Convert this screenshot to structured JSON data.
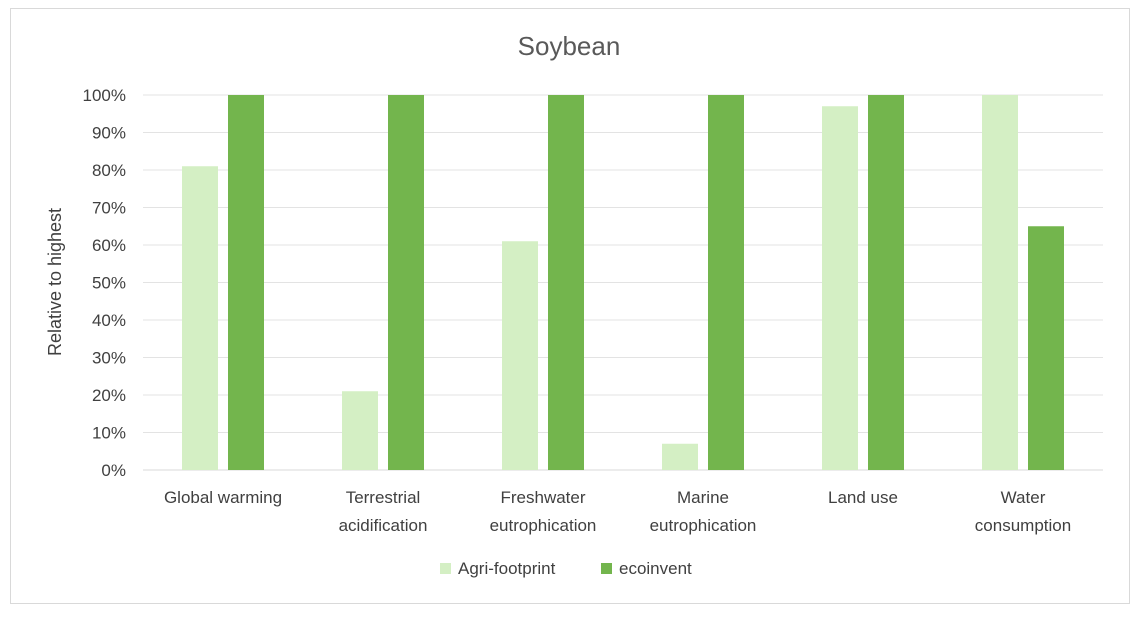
{
  "chart_data": {
    "type": "bar",
    "title": "Soybean",
    "xlabel": "",
    "ylabel": "Relative to highest",
    "categories": [
      [
        "Global warming"
      ],
      [
        "Terrestrial",
        "acidification"
      ],
      [
        "Freshwater",
        "eutrophication"
      ],
      [
        "Marine",
        "eutrophication"
      ],
      [
        "Land use"
      ],
      [
        "Water",
        "consumption"
      ]
    ],
    "series": [
      {
        "name": "Agri-footprint",
        "color": "#d4efc4",
        "values": [
          0.81,
          0.21,
          0.61,
          0.07,
          0.97,
          1.0
        ]
      },
      {
        "name": "ecoinvent",
        "color": "#73b54d",
        "values": [
          1.0,
          1.0,
          1.0,
          1.0,
          1.0,
          0.65
        ]
      }
    ],
    "ylim": [
      0,
      1.0
    ],
    "yticks": [
      "0%",
      "10%",
      "20%",
      "30%",
      "40%",
      "50%",
      "60%",
      "70%",
      "80%",
      "90%",
      "100%"
    ],
    "grid": true,
    "legend_position": "bottom"
  }
}
